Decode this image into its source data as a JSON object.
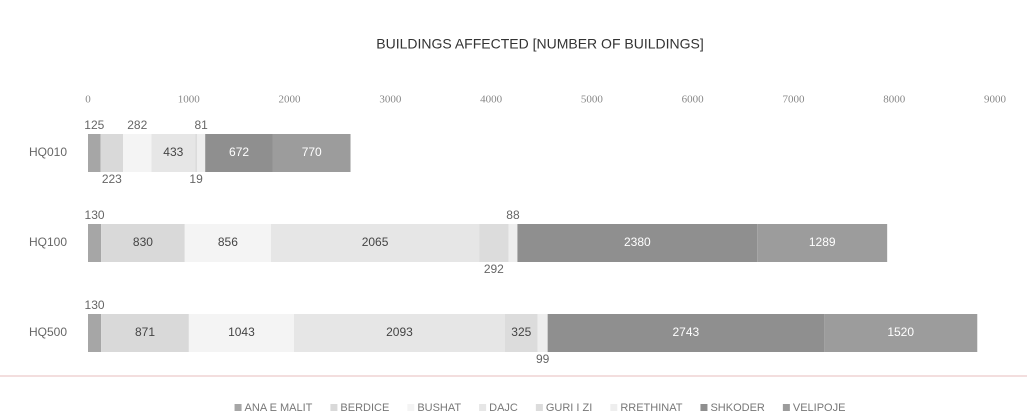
{
  "chart_data": {
    "type": "stacked_barh",
    "title": "BUILDINGS AFFECTED [NUMBER OF BUILDINGS]",
    "categories": [
      "HQ010",
      "HQ100",
      "HQ500"
    ],
    "series": [
      {
        "name": "ANA E MALIT",
        "color": "#a6a6a6",
        "values": [
          125,
          130,
          130
        ]
      },
      {
        "name": "BERDICE",
        "color": "#d9d9d9",
        "values": [
          223,
          830,
          871
        ]
      },
      {
        "name": "BUSHAT",
        "color": "#f4f4f4",
        "values": [
          282,
          856,
          1043
        ]
      },
      {
        "name": "DAJC",
        "color": "#e6e6e6",
        "values": [
          433,
          2065,
          2093
        ]
      },
      {
        "name": "GURI I ZI",
        "color": "#dcdcdc",
        "values": [
          19,
          292,
          325
        ]
      },
      {
        "name": "RRETHINAT",
        "color": "#eeeeee",
        "values": [
          81,
          88,
          99
        ]
      },
      {
        "name": "SHKODER",
        "color": "#8f8f8f",
        "values": [
          672,
          2380,
          2743
        ]
      },
      {
        "name": "VELIPOJE",
        "color": "#9c9c9c",
        "values": [
          770,
          1289,
          1520
        ]
      }
    ],
    "xlim": [
      0,
      9000
    ],
    "xticks": [
      0,
      1000,
      2000,
      3000,
      4000,
      5000,
      6000,
      7000,
      8000,
      9000
    ],
    "legend": "bottom"
  }
}
